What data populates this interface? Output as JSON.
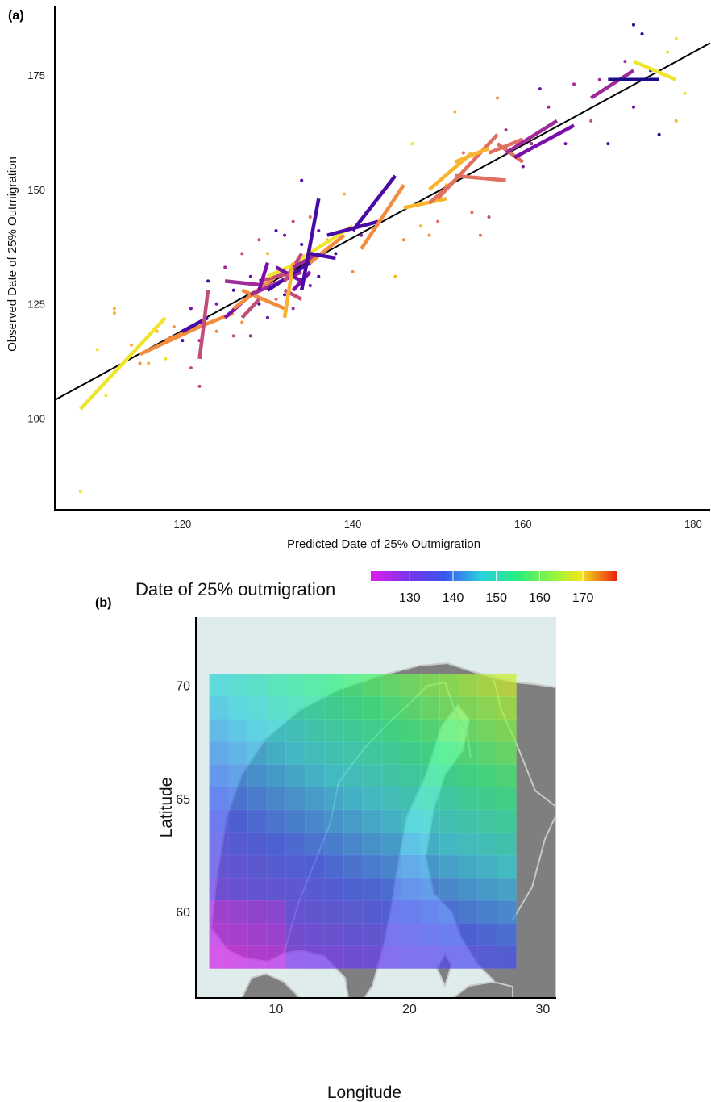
{
  "chart_data": [
    {
      "type": "scatter",
      "panel_label": "(a)",
      "xlabel": "Predicted Date of 25% Outmigration",
      "ylabel": "Observed Date of 25% Outmigration",
      "xlim": [
        105,
        182
      ],
      "ylim": [
        80,
        190
      ],
      "x_ticks": [
        120,
        140,
        160,
        180
      ],
      "y_ticks": [
        100,
        125,
        150,
        175
      ],
      "reference_line": {
        "x": [
          105,
          182
        ],
        "y": [
          104,
          182
        ]
      },
      "colors": {
        "navy": "#1b0c8a",
        "indigo": "#4a0aa6",
        "purple": "#7a0ea8",
        "magenta": "#9f2a9a",
        "pinkred": "#c44d77",
        "salmon": "#e0705f",
        "orange": "#f48c3e",
        "amber": "#f9b32d",
        "yellow": "#f0e52e"
      },
      "segments": [
        {
          "x1": 108,
          "y1": 102,
          "x2": 118,
          "y2": 122,
          "color": "yellow"
        },
        {
          "x1": 115,
          "y1": 114,
          "x2": 122,
          "y2": 120,
          "color": "orange"
        },
        {
          "x1": 118,
          "y1": 117,
          "x2": 126,
          "y2": 123,
          "color": "orange"
        },
        {
          "x1": 120,
          "y1": 119,
          "x2": 123,
          "y2": 122,
          "color": "indigo"
        },
        {
          "x1": 122,
          "y1": 113,
          "x2": 123,
          "y2": 128,
          "color": "pinkred"
        },
        {
          "x1": 125,
          "y1": 122,
          "x2": 128,
          "y2": 127,
          "color": "purple"
        },
        {
          "x1": 125,
          "y1": 130,
          "x2": 130,
          "y2": 129,
          "color": "magenta"
        },
        {
          "x1": 126,
          "y1": 124,
          "x2": 131,
          "y2": 131,
          "color": "orange"
        },
        {
          "x1": 127,
          "y1": 128,
          "x2": 132,
          "y2": 124,
          "color": "orange"
        },
        {
          "x1": 127,
          "y1": 122,
          "x2": 129,
          "y2": 126,
          "color": "pinkred"
        },
        {
          "x1": 128,
          "y1": 127,
          "x2": 134,
          "y2": 132,
          "color": "magenta"
        },
        {
          "x1": 129,
          "y1": 130,
          "x2": 133,
          "y2": 132,
          "color": "pinkred"
        },
        {
          "x1": 129,
          "y1": 128,
          "x2": 130,
          "y2": 134,
          "color": "purple"
        },
        {
          "x1": 130,
          "y1": 128,
          "x2": 135,
          "y2": 134,
          "color": "indigo"
        },
        {
          "x1": 130,
          "y1": 131,
          "x2": 136,
          "y2": 136,
          "color": "yellow"
        },
        {
          "x1": 131,
          "y1": 133,
          "x2": 134,
          "y2": 130,
          "color": "purple"
        },
        {
          "x1": 132,
          "y1": 130,
          "x2": 134,
          "y2": 136,
          "color": "pinkred"
        },
        {
          "x1": 132,
          "y1": 128,
          "x2": 134,
          "y2": 126,
          "color": "pinkred"
        },
        {
          "x1": 132,
          "y1": 122,
          "x2": 133,
          "y2": 134,
          "color": "amber"
        },
        {
          "x1": 133,
          "y1": 128,
          "x2": 135,
          "y2": 132,
          "color": "purple"
        },
        {
          "x1": 133,
          "y1": 133,
          "x2": 136,
          "y2": 136,
          "color": "magenta"
        },
        {
          "x1": 134,
          "y1": 135,
          "x2": 140,
          "y2": 142,
          "color": "yellow"
        },
        {
          "x1": 134,
          "y1": 128,
          "x2": 136,
          "y2": 148,
          "color": "indigo"
        },
        {
          "x1": 135,
          "y1": 134,
          "x2": 139,
          "y2": 140,
          "color": "orange"
        },
        {
          "x1": 135,
          "y1": 136,
          "x2": 138,
          "y2": 135,
          "color": "indigo"
        },
        {
          "x1": 137,
          "y1": 140,
          "x2": 143,
          "y2": 143,
          "color": "indigo"
        },
        {
          "x1": 140,
          "y1": 141,
          "x2": 145,
          "y2": 153,
          "color": "indigo"
        },
        {
          "x1": 141,
          "y1": 137,
          "x2": 146,
          "y2": 151,
          "color": "orange"
        },
        {
          "x1": 146,
          "y1": 146,
          "x2": 151,
          "y2": 148,
          "color": "amber"
        },
        {
          "x1": 149,
          "y1": 147,
          "x2": 152,
          "y2": 152,
          "color": "salmon"
        },
        {
          "x1": 149,
          "y1": 150,
          "x2": 154,
          "y2": 158,
          "color": "amber"
        },
        {
          "x1": 150,
          "y1": 148,
          "x2": 157,
          "y2": 162,
          "color": "salmon"
        },
        {
          "x1": 152,
          "y1": 156,
          "x2": 156,
          "y2": 159,
          "color": "amber"
        },
        {
          "x1": 152,
          "y1": 153,
          "x2": 158,
          "y2": 152,
          "color": "salmon"
        },
        {
          "x1": 156,
          "y1": 158,
          "x2": 160,
          "y2": 161,
          "color": "salmon"
        },
        {
          "x1": 157,
          "y1": 160,
          "x2": 160,
          "y2": 156,
          "color": "salmon"
        },
        {
          "x1": 158,
          "y1": 158,
          "x2": 164,
          "y2": 165,
          "color": "magenta"
        },
        {
          "x1": 159,
          "y1": 157,
          "x2": 166,
          "y2": 164,
          "color": "purple"
        },
        {
          "x1": 168,
          "y1": 170,
          "x2": 173,
          "y2": 176,
          "color": "magenta"
        },
        {
          "x1": 170,
          "y1": 174,
          "x2": 176,
          "y2": 174,
          "color": "navy"
        },
        {
          "x1": 173,
          "y1": 178,
          "x2": 178,
          "y2": 174,
          "color": "yellow"
        }
      ],
      "points": [
        {
          "x": 108,
          "y": 84,
          "c": "yellow"
        },
        {
          "x": 110,
          "y": 115,
          "c": "yellow"
        },
        {
          "x": 111,
          "y": 105,
          "c": "yellow"
        },
        {
          "x": 112,
          "y": 123,
          "c": "amber"
        },
        {
          "x": 112,
          "y": 124,
          "c": "amber"
        },
        {
          "x": 114,
          "y": 116,
          "c": "amber"
        },
        {
          "x": 115,
          "y": 112,
          "c": "orange"
        },
        {
          "x": 116,
          "y": 112,
          "c": "amber"
        },
        {
          "x": 117,
          "y": 119,
          "c": "amber"
        },
        {
          "x": 118,
          "y": 113,
          "c": "yellow"
        },
        {
          "x": 119,
          "y": 120,
          "c": "orange"
        },
        {
          "x": 120,
          "y": 117,
          "c": "indigo"
        },
        {
          "x": 121,
          "y": 111,
          "c": "pinkred"
        },
        {
          "x": 121,
          "y": 124,
          "c": "purple"
        },
        {
          "x": 122,
          "y": 107,
          "c": "pinkred"
        },
        {
          "x": 122,
          "y": 117,
          "c": "magenta"
        },
        {
          "x": 123,
          "y": 130,
          "c": "indigo"
        },
        {
          "x": 124,
          "y": 125,
          "c": "purple"
        },
        {
          "x": 124,
          "y": 119,
          "c": "orange"
        },
        {
          "x": 125,
          "y": 133,
          "c": "magenta"
        },
        {
          "x": 126,
          "y": 118,
          "c": "pinkred"
        },
        {
          "x": 126,
          "y": 128,
          "c": "indigo"
        },
        {
          "x": 127,
          "y": 136,
          "c": "pinkred"
        },
        {
          "x": 127,
          "y": 121,
          "c": "orange"
        },
        {
          "x": 128,
          "y": 131,
          "c": "purple"
        },
        {
          "x": 128,
          "y": 118,
          "c": "magenta"
        },
        {
          "x": 129,
          "y": 125,
          "c": "indigo"
        },
        {
          "x": 129,
          "y": 139,
          "c": "pinkred"
        },
        {
          "x": 130,
          "y": 122,
          "c": "purple"
        },
        {
          "x": 130,
          "y": 136,
          "c": "amber"
        },
        {
          "x": 131,
          "y": 141,
          "c": "indigo"
        },
        {
          "x": 131,
          "y": 126,
          "c": "salmon"
        },
        {
          "x": 132,
          "y": 140,
          "c": "purple"
        },
        {
          "x": 132,
          "y": 127,
          "c": "indigo"
        },
        {
          "x": 133,
          "y": 143,
          "c": "pinkred"
        },
        {
          "x": 133,
          "y": 124,
          "c": "magenta"
        },
        {
          "x": 134,
          "y": 138,
          "c": "indigo"
        },
        {
          "x": 134,
          "y": 152,
          "c": "indigo"
        },
        {
          "x": 135,
          "y": 129,
          "c": "purple"
        },
        {
          "x": 135,
          "y": 144,
          "c": "salmon"
        },
        {
          "x": 136,
          "y": 131,
          "c": "indigo"
        },
        {
          "x": 136,
          "y": 141,
          "c": "purple"
        },
        {
          "x": 137,
          "y": 139,
          "c": "amber"
        },
        {
          "x": 138,
          "y": 136,
          "c": "indigo"
        },
        {
          "x": 139,
          "y": 149,
          "c": "amber"
        },
        {
          "x": 140,
          "y": 132,
          "c": "orange"
        },
        {
          "x": 141,
          "y": 140,
          "c": "purple"
        },
        {
          "x": 145,
          "y": 131,
          "c": "amber"
        },
        {
          "x": 146,
          "y": 139,
          "c": "orange"
        },
        {
          "x": 147,
          "y": 160,
          "c": "yellow"
        },
        {
          "x": 148,
          "y": 142,
          "c": "amber"
        },
        {
          "x": 149,
          "y": 140,
          "c": "orange"
        },
        {
          "x": 150,
          "y": 143,
          "c": "salmon"
        },
        {
          "x": 151,
          "y": 151,
          "c": "amber"
        },
        {
          "x": 152,
          "y": 167,
          "c": "amber"
        },
        {
          "x": 153,
          "y": 158,
          "c": "salmon"
        },
        {
          "x": 154,
          "y": 145,
          "c": "salmon"
        },
        {
          "x": 155,
          "y": 140,
          "c": "salmon"
        },
        {
          "x": 156,
          "y": 144,
          "c": "pinkred"
        },
        {
          "x": 157,
          "y": 170,
          "c": "orange"
        },
        {
          "x": 158,
          "y": 163,
          "c": "magenta"
        },
        {
          "x": 160,
          "y": 155,
          "c": "purple"
        },
        {
          "x": 161,
          "y": 160,
          "c": "magenta"
        },
        {
          "x": 162,
          "y": 172,
          "c": "purple"
        },
        {
          "x": 163,
          "y": 168,
          "c": "magenta"
        },
        {
          "x": 165,
          "y": 160,
          "c": "purple"
        },
        {
          "x": 166,
          "y": 173,
          "c": "magenta"
        },
        {
          "x": 168,
          "y": 165,
          "c": "pinkred"
        },
        {
          "x": 169,
          "y": 174,
          "c": "magenta"
        },
        {
          "x": 170,
          "y": 160,
          "c": "indigo"
        },
        {
          "x": 172,
          "y": 178,
          "c": "magenta"
        },
        {
          "x": 173,
          "y": 186,
          "c": "navy"
        },
        {
          "x": 173,
          "y": 168,
          "c": "purple"
        },
        {
          "x": 174,
          "y": 184,
          "c": "navy"
        },
        {
          "x": 175,
          "y": 176,
          "c": "navy"
        },
        {
          "x": 176,
          "y": 162,
          "c": "navy"
        },
        {
          "x": 177,
          "y": 180,
          "c": "yellow"
        },
        {
          "x": 178,
          "y": 183,
          "c": "yellow"
        },
        {
          "x": 178,
          "y": 165,
          "c": "amber"
        },
        {
          "x": 179,
          "y": 171,
          "c": "yellow"
        }
      ]
    },
    {
      "type": "heatmap",
      "panel_label": "(b)",
      "xlabel": "Longitude",
      "ylabel": "Latitude",
      "xlim": [
        4,
        31
      ],
      "ylim": [
        56.2,
        73
      ],
      "x_ticks": [
        10,
        20,
        30
      ],
      "y_ticks": [
        60,
        65,
        70
      ],
      "grid_lon_range": [
        5,
        28
      ],
      "grid_lat_range": [
        57.5,
        70.5
      ],
      "cols": 16,
      "rows": 13,
      "legend_title": "Date of 25% outmigration",
      "legend_ticks": [
        130,
        140,
        150,
        160,
        170
      ],
      "legend_range": [
        121,
        178
      ],
      "legend_position": "top",
      "colors": {
        "sea": "#dfecec",
        "land": "#7f7f7f",
        "border": "#c9c9c9"
      }
    }
  ]
}
